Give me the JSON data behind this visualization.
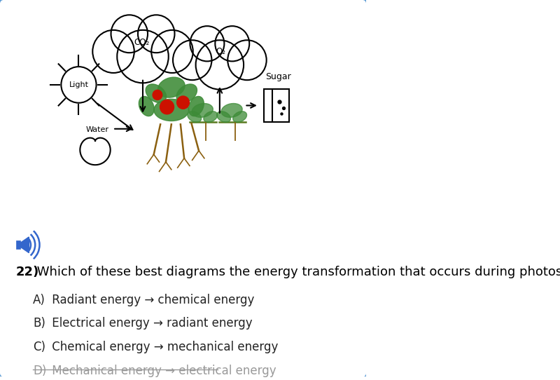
{
  "background_color": "#ffffff",
  "border_color": "#5b9bd5",
  "question_number": "22)",
  "question_text": " Which of these best diagrams the energy transformation that occurs during photosynthesis?",
  "choices": [
    {
      "label": "A)",
      "text": " Radiant energy → chemical energy",
      "strikethrough": false,
      "color": "#222222"
    },
    {
      "label": "B)",
      "text": " Electrical energy → radiant energy",
      "strikethrough": false,
      "color": "#222222"
    },
    {
      "label": "C)",
      "text": " Chemical energy → mechanical energy",
      "strikethrough": false,
      "color": "#222222"
    },
    {
      "label": "D)",
      "text": " Mechanical energy → electrical energy",
      "strikethrough": true,
      "color": "#999999"
    }
  ],
  "speaker_color": "#3366cc",
  "font_size_question": 13,
  "font_size_choices": 12,
  "font_size_diagram": 9
}
